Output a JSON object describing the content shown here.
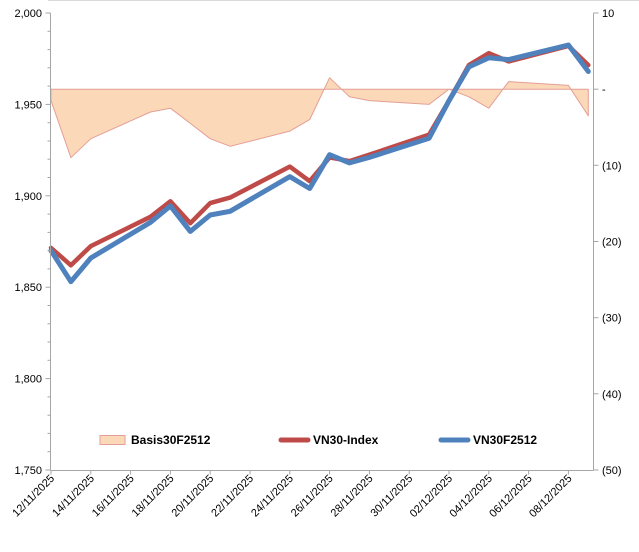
{
  "chart_data": {
    "type": "combo-line-area",
    "title": "",
    "x_dates": [
      "12/11/2025",
      "13/11/2025",
      "14/11/2025",
      "17/11/2025",
      "18/11/2025",
      "19/11/2025",
      "20/11/2025",
      "21/11/2025",
      "24/11/2025",
      "25/11/2025",
      "26/11/2025",
      "27/11/2025",
      "28/11/2025",
      "01/12/2025",
      "02/12/2025",
      "03/12/2025",
      "04/12/2025",
      "05/12/2025",
      "08/12/2025",
      "09/12/2025"
    ],
    "day_offsets": [
      0,
      1,
      2,
      5,
      6,
      7,
      8,
      9,
      12,
      13,
      14,
      15,
      16,
      19,
      20,
      21,
      22,
      23,
      26,
      27
    ],
    "x_axis_tick_labels": [
      "12/11/2025",
      "14/11/2025",
      "16/11/2025",
      "18/11/2025",
      "20/11/2025",
      "22/11/2025",
      "24/11/2025",
      "26/11/2025",
      "28/11/2025",
      "30/11/2025",
      "02/12/2025",
      "04/12/2025",
      "06/12/2025",
      "08/12/2025"
    ],
    "x_axis_tick_day_offsets": [
      0,
      2,
      4,
      6,
      8,
      10,
      12,
      14,
      16,
      18,
      20,
      22,
      24,
      26
    ],
    "left_axis": {
      "min": 1750,
      "max": 2000,
      "major_step": 50,
      "minor_step": 10,
      "tick_labels": [
        "2,000",
        "1,950",
        "1,900",
        "1,850",
        "1,800",
        "1,750"
      ],
      "grid": false
    },
    "right_axis": {
      "min": -50,
      "max": 10,
      "major_step": 10,
      "tick_labels": [
        "10",
        "-",
        "(10)",
        "(20)",
        "(30)",
        "(40)",
        "(50)"
      ],
      "grid": false
    },
    "series": [
      {
        "name": "Basis30F2512",
        "type": "area",
        "axis": "right",
        "values": [
          -1.5,
          -9,
          -6.5,
          -3,
          -2.5,
          -4.5,
          -6.5,
          -7.5,
          -5.5,
          -4,
          1.5,
          -1,
          -1.5,
          -2,
          0,
          -1,
          -2.5,
          1,
          0.5,
          -3.5
        ]
      },
      {
        "name": "VN30-Index",
        "type": "line",
        "axis": "left",
        "values": [
          1871.5,
          1862,
          1872.5,
          1888.5,
          1897,
          1885,
          1896,
          1899,
          1916,
          1908,
          1921,
          1919,
          1922.5,
          1933.5,
          1952,
          1971.5,
          1978,
          1973.5,
          1982,
          1971.5
        ]
      },
      {
        "name": "VN30F2512",
        "type": "line",
        "axis": "left",
        "values": [
          1870,
          1853,
          1866,
          1885.5,
          1894.5,
          1880.5,
          1889.5,
          1891.5,
          1910.5,
          1904,
          1922.5,
          1918,
          1921,
          1931.5,
          1952,
          1970.5,
          1975.5,
          1974.5,
          1982.5,
          1968
        ]
      }
    ],
    "colors": {
      "area_fill": "#FBD9B8",
      "area_border": "#E49E95",
      "vn30_index_line": "#BE4B48",
      "vn30f2512_line": "#4F81BD",
      "axis_line": "#A6A6A6",
      "top_border": "#D9D9D9",
      "text": "#000000"
    },
    "legend_position": "bottom-inside"
  },
  "legend": {
    "items": [
      {
        "label": "Basis30F2512",
        "swatch": "area"
      },
      {
        "label": "VN30-Index",
        "swatch": "line-red"
      },
      {
        "label": "VN30F2512",
        "swatch": "line-blue"
      }
    ]
  }
}
